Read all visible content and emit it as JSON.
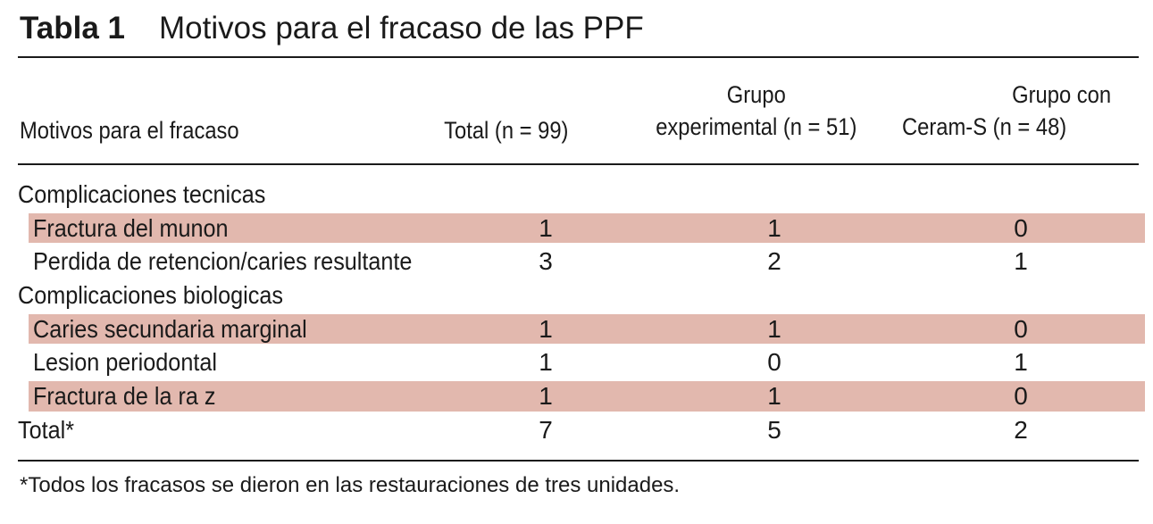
{
  "title": {
    "number": "Tabla 1",
    "text": "Motivos para el fracaso de las PPF"
  },
  "columns": {
    "reason": "Motivos para el fracaso",
    "total": "Total (n = 99)",
    "experimental_l1": "Grupo",
    "experimental_l2": "experimental (n = 51)",
    "ceram_l1": "Grupo con",
    "ceram_l2": "Ceram-S (n = 48)"
  },
  "rows": [
    {
      "label": "Complicaciones tecnicas",
      "total": "",
      "experimental": "",
      "ceram": ""
    },
    {
      "label": "Fractura del munon",
      "total": "1",
      "experimental": "1",
      "ceram": "0"
    },
    {
      "label": "Perdida de retencion/caries resultante",
      "total": "3",
      "experimental": "2",
      "ceram": "1"
    },
    {
      "label": "Complicaciones biologicas",
      "total": "",
      "experimental": "",
      "ceram": ""
    },
    {
      "label": "Caries secundaria marginal",
      "total": "1",
      "experimental": "1",
      "ceram": "0"
    },
    {
      "label": "Lesion periodontal",
      "total": "1",
      "experimental": "0",
      "ceram": "1"
    },
    {
      "label": "Fractura de la ra z",
      "total": "1",
      "experimental": "1",
      "ceram": "0"
    },
    {
      "label": "Total*",
      "total": "7",
      "experimental": "5",
      "ceram": "2"
    }
  ],
  "footnote": "*Todos los fracasos se dieron en las restauraciones de tres unidades.",
  "colors": {
    "shade": "#e2b8ae",
    "text": "#1a1a1a"
  }
}
